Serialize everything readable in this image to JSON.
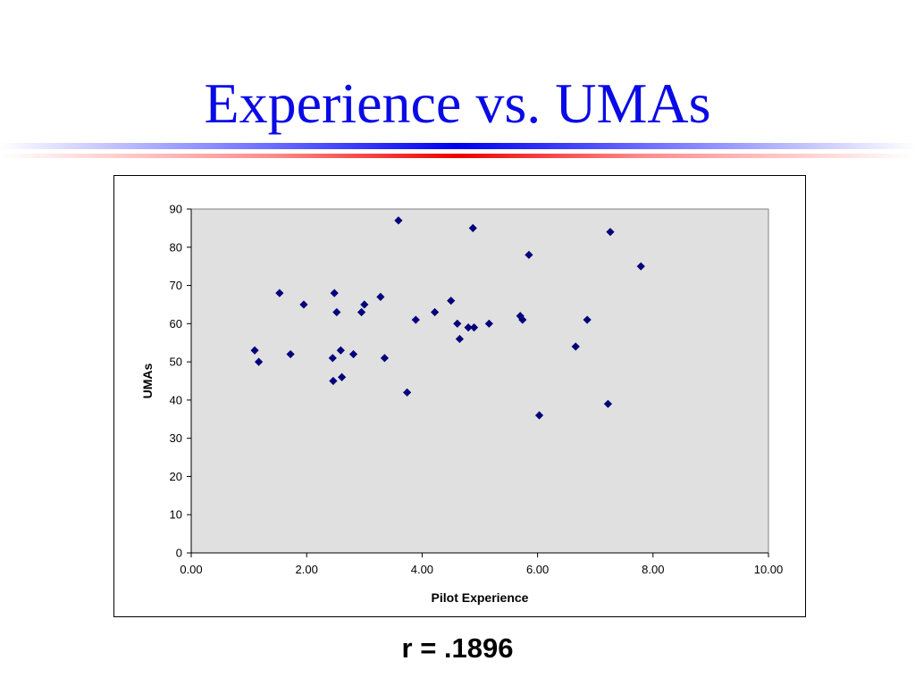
{
  "slide": {
    "title": "Experience vs. UMAs",
    "correlation_text": "r = .1896"
  },
  "colors": {
    "title": "#0a0ae6",
    "plot_background": "#e0e0e0",
    "marker": "#00007a",
    "divider_blue": "#0000ee",
    "divider_red": "#ee0000"
  },
  "chart_data": {
    "type": "scatter",
    "title": "",
    "xlabel": "Pilot Experience",
    "ylabel": "UMAs",
    "xlim": [
      0,
      10
    ],
    "ylim": [
      0,
      90
    ],
    "x_ticks": [
      "0.00",
      "2.00",
      "4.00",
      "6.00",
      "8.00",
      "10.00"
    ],
    "y_ticks": [
      "0",
      "10",
      "20",
      "30",
      "40",
      "50",
      "60",
      "70",
      "80",
      "90"
    ],
    "grid": false,
    "legend": "none",
    "marker": "diamond",
    "points": [
      {
        "x": 1.1,
        "y": 53
      },
      {
        "x": 1.17,
        "y": 50
      },
      {
        "x": 1.53,
        "y": 68
      },
      {
        "x": 1.72,
        "y": 52
      },
      {
        "x": 1.95,
        "y": 65
      },
      {
        "x": 2.45,
        "y": 51
      },
      {
        "x": 2.46,
        "y": 45
      },
      {
        "x": 2.48,
        "y": 68
      },
      {
        "x": 2.52,
        "y": 63
      },
      {
        "x": 2.59,
        "y": 53
      },
      {
        "x": 2.61,
        "y": 46
      },
      {
        "x": 2.81,
        "y": 52
      },
      {
        "x": 2.95,
        "y": 63
      },
      {
        "x": 3.0,
        "y": 65
      },
      {
        "x": 3.28,
        "y": 67
      },
      {
        "x": 3.35,
        "y": 51
      },
      {
        "x": 3.59,
        "y": 87
      },
      {
        "x": 3.74,
        "y": 42
      },
      {
        "x": 3.89,
        "y": 61
      },
      {
        "x": 4.22,
        "y": 63
      },
      {
        "x": 4.5,
        "y": 66
      },
      {
        "x": 4.61,
        "y": 60
      },
      {
        "x": 4.65,
        "y": 56
      },
      {
        "x": 4.8,
        "y": 59
      },
      {
        "x": 4.88,
        "y": 85
      },
      {
        "x": 4.9,
        "y": 59
      },
      {
        "x": 5.16,
        "y": 60
      },
      {
        "x": 5.7,
        "y": 62
      },
      {
        "x": 5.74,
        "y": 61
      },
      {
        "x": 5.85,
        "y": 78
      },
      {
        "x": 6.03,
        "y": 36
      },
      {
        "x": 6.66,
        "y": 54
      },
      {
        "x": 6.86,
        "y": 61
      },
      {
        "x": 7.22,
        "y": 39
      },
      {
        "x": 7.26,
        "y": 84
      },
      {
        "x": 7.79,
        "y": 75
      }
    ]
  }
}
